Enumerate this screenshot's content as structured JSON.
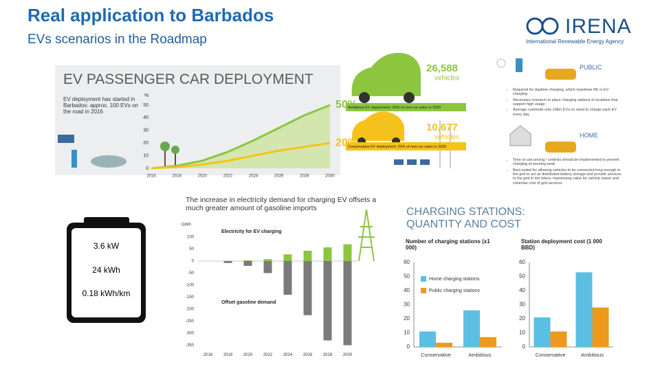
{
  "header": {
    "title": "Real application to Barbados",
    "subtitle": "EVs scenarios in the Roadmap",
    "logo": "IRENA",
    "logo_sub": "International Renewable Energy Agency"
  },
  "battery": [
    "3.6 kW",
    "24 kWh",
    "0.18 kWh/km"
  ],
  "infographic": {
    "public": {
      "label": "PUBLIC",
      "bullets": [
        "Required for daytime charging, which maximise RE in EV charging",
        "Necessary research to place charging stations in locations that support high usage",
        "Average commute only 10km EVs no need to charge each EV every day"
      ]
    },
    "home": {
      "label": "HOME",
      "bullets": [
        "Time of use pricing / controls should be implemented to prevent charging at evening peak",
        "Best suited for allowing vehicles to be connected long enough to the grid to act as distributed battery storage and provide services to the grid in the future, maximising value for vehicle owner and minimise cost of grid services"
      ]
    }
  },
  "charging_heading": "CHARGING STATIONS: QUANTITY AND COST",
  "chart_data": [
    {
      "type": "area",
      "title": "EV PASSENGER CAR DEPLOYMENT",
      "note": "EV deployment has started in Barbados: approx. 100 EVs on the road in 2016",
      "ylabel": "%",
      "categories": [
        "2016",
        "2018",
        "2020",
        "2022",
        "2024",
        "2026",
        "2028",
        "2030"
      ],
      "ylim": [
        0,
        50
      ],
      "yticks": [
        0,
        10,
        20,
        30,
        40,
        50
      ],
      "grid": false,
      "series": [
        {
          "name": "Ambitious EV deployment: 50% of new car sales in 2030",
          "color": "#8cc63f",
          "fill": "#d3e6ad",
          "values": [
            0,
            2,
            6,
            13,
            22,
            32,
            42,
            50
          ],
          "value_labels": [
            null,
            null,
            null,
            null,
            null,
            null,
            null,
            "50%"
          ],
          "stock": "26,588",
          "stock_unit": "vehicles"
        },
        {
          "name": "Conservative EV deployment: 20% of new car sales in 2030",
          "color": "#f5c21b",
          "values": [
            0,
            1,
            3,
            6,
            10,
            14,
            17,
            20
          ],
          "value_labels": [
            null,
            null,
            null,
            null,
            null,
            null,
            null,
            "20%"
          ],
          "stock": "10,677",
          "stock_unit": "vehicles"
        }
      ]
    },
    {
      "type": "bar",
      "heading": "The increase in electricity demand for charging EV offsets a much greater amount of gasoline imports",
      "ylabel": "GWh",
      "categories": [
        "2016",
        "2018",
        "2020",
        "2022",
        "2024",
        "2026",
        "2028",
        "2030"
      ],
      "ylim": [
        -350,
        100
      ],
      "yticks": [
        100,
        50,
        0,
        -50,
        -100,
        -150,
        -200,
        -250,
        -300,
        -350
      ],
      "series": [
        {
          "name": "Electricity for EV charging",
          "color": "#8cc63f",
          "values": [
            0,
            1,
            3,
            8,
            28,
            43,
            57,
            70
          ]
        },
        {
          "name": "Offset gasoline demand",
          "color": "#7a7a7a",
          "values": [
            0,
            -8,
            -20,
            -50,
            -140,
            -225,
            -330,
            -350
          ]
        }
      ]
    },
    {
      "type": "bar",
      "title": "Number of charging stations (x1 000)",
      "categories": [
        "Conservative",
        "Ambitious"
      ],
      "ylim": [
        0,
        60
      ],
      "yticks": [
        0,
        10,
        20,
        30,
        40,
        50,
        60
      ],
      "legend": "upper-left",
      "series": [
        {
          "name": "Home charging stations",
          "color": "#5bbfe3",
          "values": [
            11,
            26
          ]
        },
        {
          "name": "Public charging stations",
          "color": "#ec9a1e",
          "values": [
            3,
            7
          ]
        }
      ]
    },
    {
      "type": "bar",
      "title": "Station deployment cost (1 000 BBD)",
      "categories": [
        "Conservative",
        "Ambitious"
      ],
      "ylim": [
        0,
        60
      ],
      "yticks": [
        0,
        10,
        20,
        30,
        40,
        50,
        60
      ],
      "series": [
        {
          "color": "#5bbfe3",
          "values": [
            21,
            53
          ]
        },
        {
          "color": "#ec9a1e",
          "values": [
            11,
            28
          ]
        }
      ]
    }
  ]
}
